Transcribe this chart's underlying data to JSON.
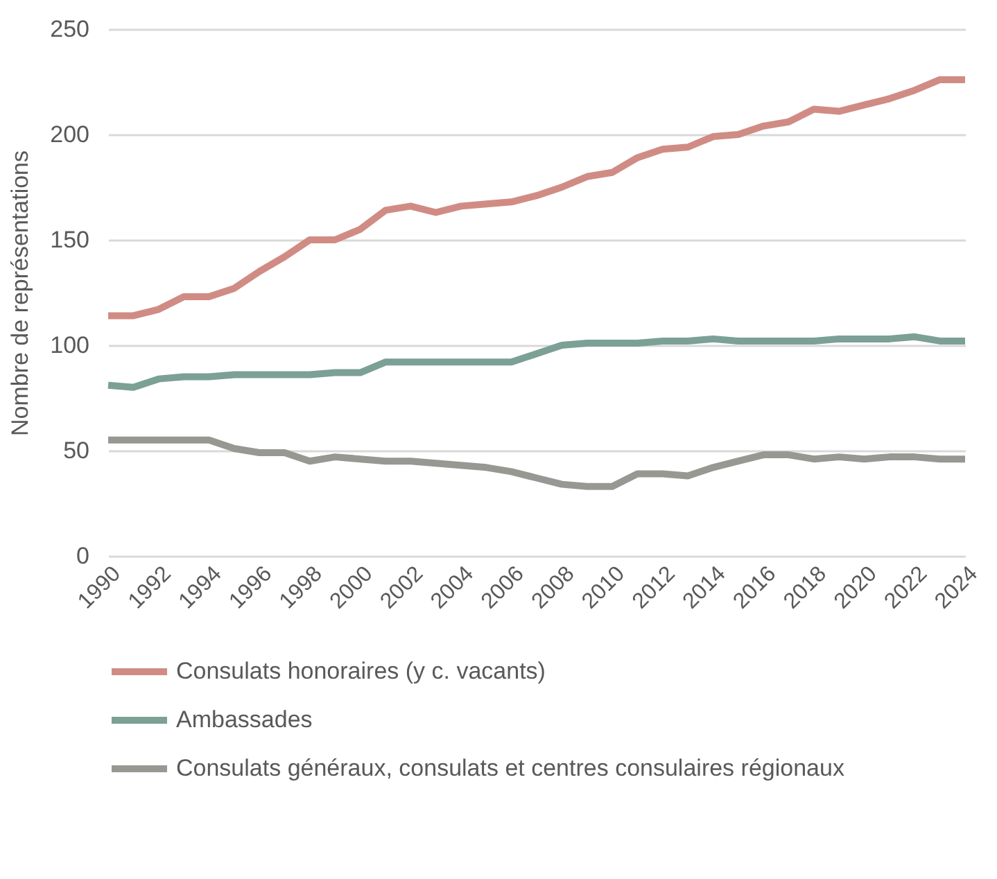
{
  "chart_data": {
    "type": "line",
    "ylabel": "Nombre de représentations",
    "x": [
      1990,
      1991,
      1992,
      1993,
      1994,
      1995,
      1996,
      1997,
      1998,
      1999,
      2000,
      2001,
      2002,
      2003,
      2004,
      2005,
      2006,
      2007,
      2008,
      2009,
      2010,
      2011,
      2012,
      2013,
      2014,
      2015,
      2016,
      2017,
      2018,
      2019,
      2020,
      2021,
      2022,
      2023,
      2024
    ],
    "xlim": [
      1990,
      2024
    ],
    "xticks": [
      1990,
      1992,
      1994,
      1996,
      1998,
      2000,
      2002,
      2004,
      2006,
      2008,
      2010,
      2012,
      2014,
      2016,
      2018,
      2020,
      2022,
      2024
    ],
    "ylim": [
      0,
      250
    ],
    "yticks": [
      0,
      50,
      100,
      150,
      200,
      250
    ],
    "grid": "y",
    "legend": "bottom",
    "marker": "none",
    "line_style": "solid",
    "series": [
      {
        "name": "Consulats honoraires (y c. vacants)",
        "color": "#d08c84",
        "values": [
          114,
          114,
          117,
          123,
          123,
          127,
          135,
          142,
          150,
          150,
          155,
          164,
          166,
          163,
          166,
          167,
          168,
          171,
          175,
          180,
          182,
          189,
          193,
          194,
          199,
          200,
          204,
          206,
          212,
          211,
          214,
          217,
          221,
          226,
          226
        ]
      },
      {
        "name": "Ambassades",
        "color": "#7ca096",
        "values": [
          81,
          80,
          84,
          85,
          85,
          86,
          86,
          86,
          86,
          87,
          87,
          92,
          92,
          92,
          92,
          92,
          92,
          96,
          100,
          101,
          101,
          101,
          102,
          102,
          103,
          102,
          102,
          102,
          102,
          103,
          103,
          103,
          104,
          102,
          102
        ]
      },
      {
        "name": "Consulats généraux, consulats et centres consulaires régionaux",
        "color": "#989893",
        "values": [
          55,
          55,
          55,
          55,
          55,
          51,
          49,
          49,
          45,
          47,
          46,
          45,
          45,
          44,
          43,
          42,
          40,
          37,
          34,
          33,
          33,
          39,
          39,
          38,
          42,
          45,
          48,
          48,
          46,
          47,
          46,
          47,
          47,
          46,
          46
        ]
      }
    ]
  }
}
